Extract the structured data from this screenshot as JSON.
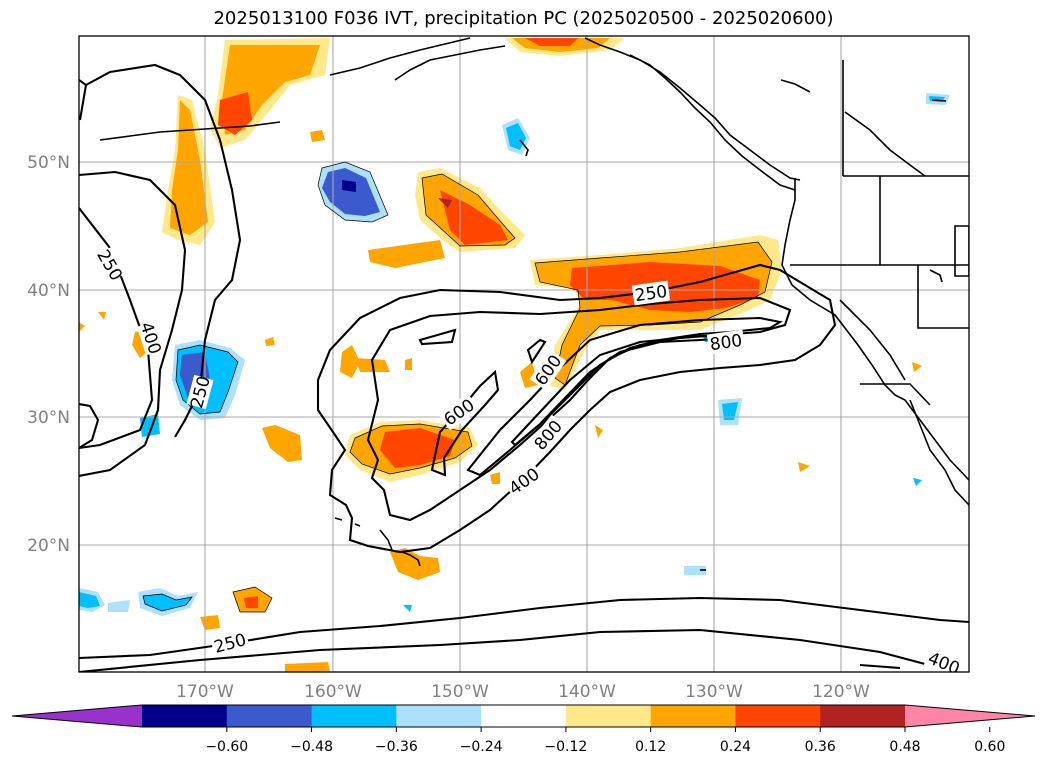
{
  "title": "2025013100 F036 IVT, precipitation PC (2025020500 - 2025020600)",
  "lat_labels": [
    "50°N",
    "40°N",
    "30°N",
    "20°N"
  ],
  "lon_labels": [
    "170°W",
    "160°W",
    "150°W",
    "140°W",
    "130°W",
    "120°W"
  ],
  "colorbar": {
    "colors": [
      "#9932cc",
      "#00008b",
      "#3a5acd",
      "#00bfff",
      "#ade0fa",
      "#ffffff",
      "#ffe88a",
      "#ffa500",
      "#ff4500",
      "#b22222",
      "#ff85a8"
    ],
    "tick_labels": [
      "−0.60",
      "−0.48",
      "−0.36",
      "−0.24",
      "−0.12",
      "0.12",
      "0.24",
      "0.36",
      "0.48",
      "0.60"
    ]
  },
  "contour_labels": [
    "250",
    "400",
    "250",
    "250",
    "600",
    "800",
    "600",
    "800",
    "400",
    "250",
    "400"
  ],
  "icons": {
    "colorbar-extend-low": "triangle-left",
    "colorbar-extend-high": "triangle-right"
  }
}
